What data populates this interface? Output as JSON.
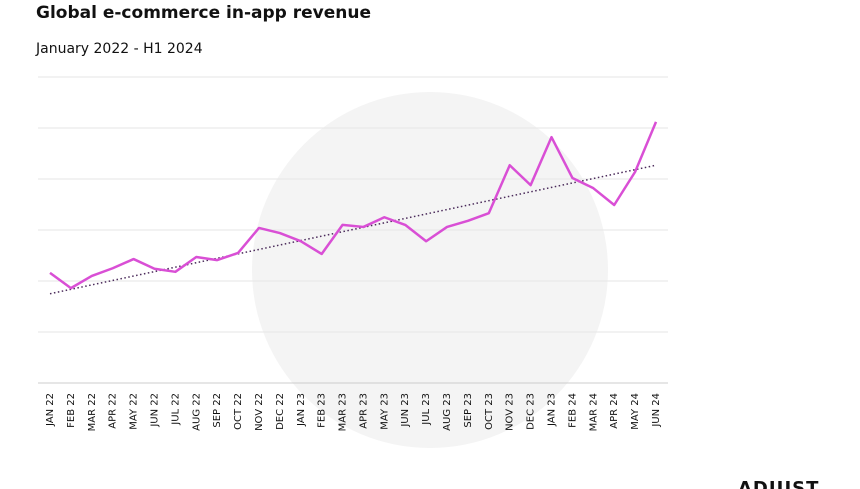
{
  "chart_data": {
    "type": "line",
    "title": "Global e-commerce in-app revenue",
    "subtitle": "January 2022 - H1 2024",
    "brand": "ADJUST",
    "categories": [
      "JAN 22",
      "FEB 22",
      "MAR 22",
      "APR 22",
      "MAY 22",
      "JUN 22",
      "JUL 22",
      "AUG 22",
      "SEP 22",
      "OCT 22",
      "NOV 22",
      "DEC 22",
      "JAN 23",
      "FEB 23",
      "MAR 23",
      "APR 23",
      "MAY 23",
      "JUN 23",
      "JUL 23",
      "AUG 23",
      "SEP 23",
      "OCT 23",
      "NOV 23",
      "DEC 23",
      "JAN 23",
      "FEB 24",
      "MAR 24",
      "APR 24",
      "MAY 24",
      "JUN 24"
    ],
    "series": [
      {
        "color": "#d94fd5",
        "values": [
          2.16,
          1.86,
          2.1,
          2.25,
          2.43,
          2.24,
          2.18,
          2.47,
          2.41,
          2.55,
          3.04,
          2.94,
          2.78,
          2.53,
          3.1,
          3.06,
          3.25,
          3.1,
          2.78,
          3.06,
          3.18,
          3.33,
          4.27,
          3.88,
          4.82,
          4.02,
          3.82,
          3.49,
          4.14,
          5.12
        ]
      }
    ],
    "trendline": {
      "color": "#4a2a5a",
      "values": [
        1.75,
        4.27
      ]
    },
    "ylim": [
      0,
      6
    ],
    "yticks": [
      0,
      1,
      2,
      3,
      4,
      5,
      6
    ],
    "grid": true
  }
}
